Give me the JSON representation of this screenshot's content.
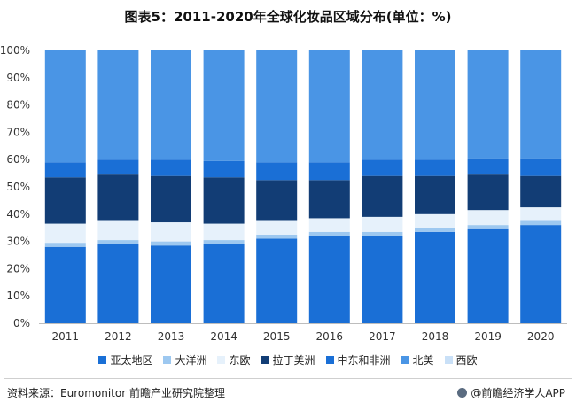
{
  "title": "图表5：2011-2020年全球化妆品区域分布(单位：%)",
  "chart_data": {
    "type": "bar",
    "stacked": true,
    "categories": [
      "2011",
      "2012",
      "2013",
      "2014",
      "2015",
      "2016",
      "2017",
      "2018",
      "2019",
      "2020"
    ],
    "y_ticks": [
      "0%",
      "10%",
      "20%",
      "30%",
      "40%",
      "50%",
      "60%",
      "70%",
      "80%",
      "90%",
      "100%"
    ],
    "ylim": [
      0,
      100
    ],
    "grid": false,
    "legend_position": "bottom",
    "series": [
      {
        "name": "亚太地区",
        "color": "#1a6fd6",
        "values": [
          28,
          29,
          28.5,
          29,
          31,
          32,
          32,
          33.5,
          34.5,
          36
        ]
      },
      {
        "name": "大洋洲",
        "color": "#9dc8f0",
        "values": [
          1.5,
          1.5,
          1.5,
          1.5,
          1.5,
          1.5,
          1.5,
          1.5,
          1.5,
          1.5
        ]
      },
      {
        "name": "东欧",
        "color": "#e6f1fb",
        "values": [
          7,
          7,
          7,
          6,
          5,
          5,
          5.5,
          5,
          5.5,
          5
        ]
      },
      {
        "name": "拉丁美洲",
        "color": "#123d75",
        "values": [
          17,
          17,
          17,
          17,
          15,
          14,
          15,
          14,
          13,
          11.5
        ]
      },
      {
        "name": "中东和非洲",
        "color": "#1a6fd6",
        "values": [
          5.5,
          5.5,
          6,
          6,
          6.5,
          6.5,
          6,
          6,
          6,
          6.5
        ]
      },
      {
        "name": "北美",
        "color": "#4a95e5",
        "values": [
          41,
          40,
          40,
          40.5,
          41,
          41,
          40,
          40,
          39.5,
          39.5
        ]
      },
      {
        "name": "西欧",
        "color": "#c9e0f7",
        "values": [
          0,
          0,
          0,
          0,
          0,
          0,
          0,
          0,
          0,
          0
        ]
      }
    ]
  },
  "footer": {
    "source": "资料来源：Euromonitor 前瞻产业研究院整理",
    "brand": "@前瞻经济学人APP"
  }
}
